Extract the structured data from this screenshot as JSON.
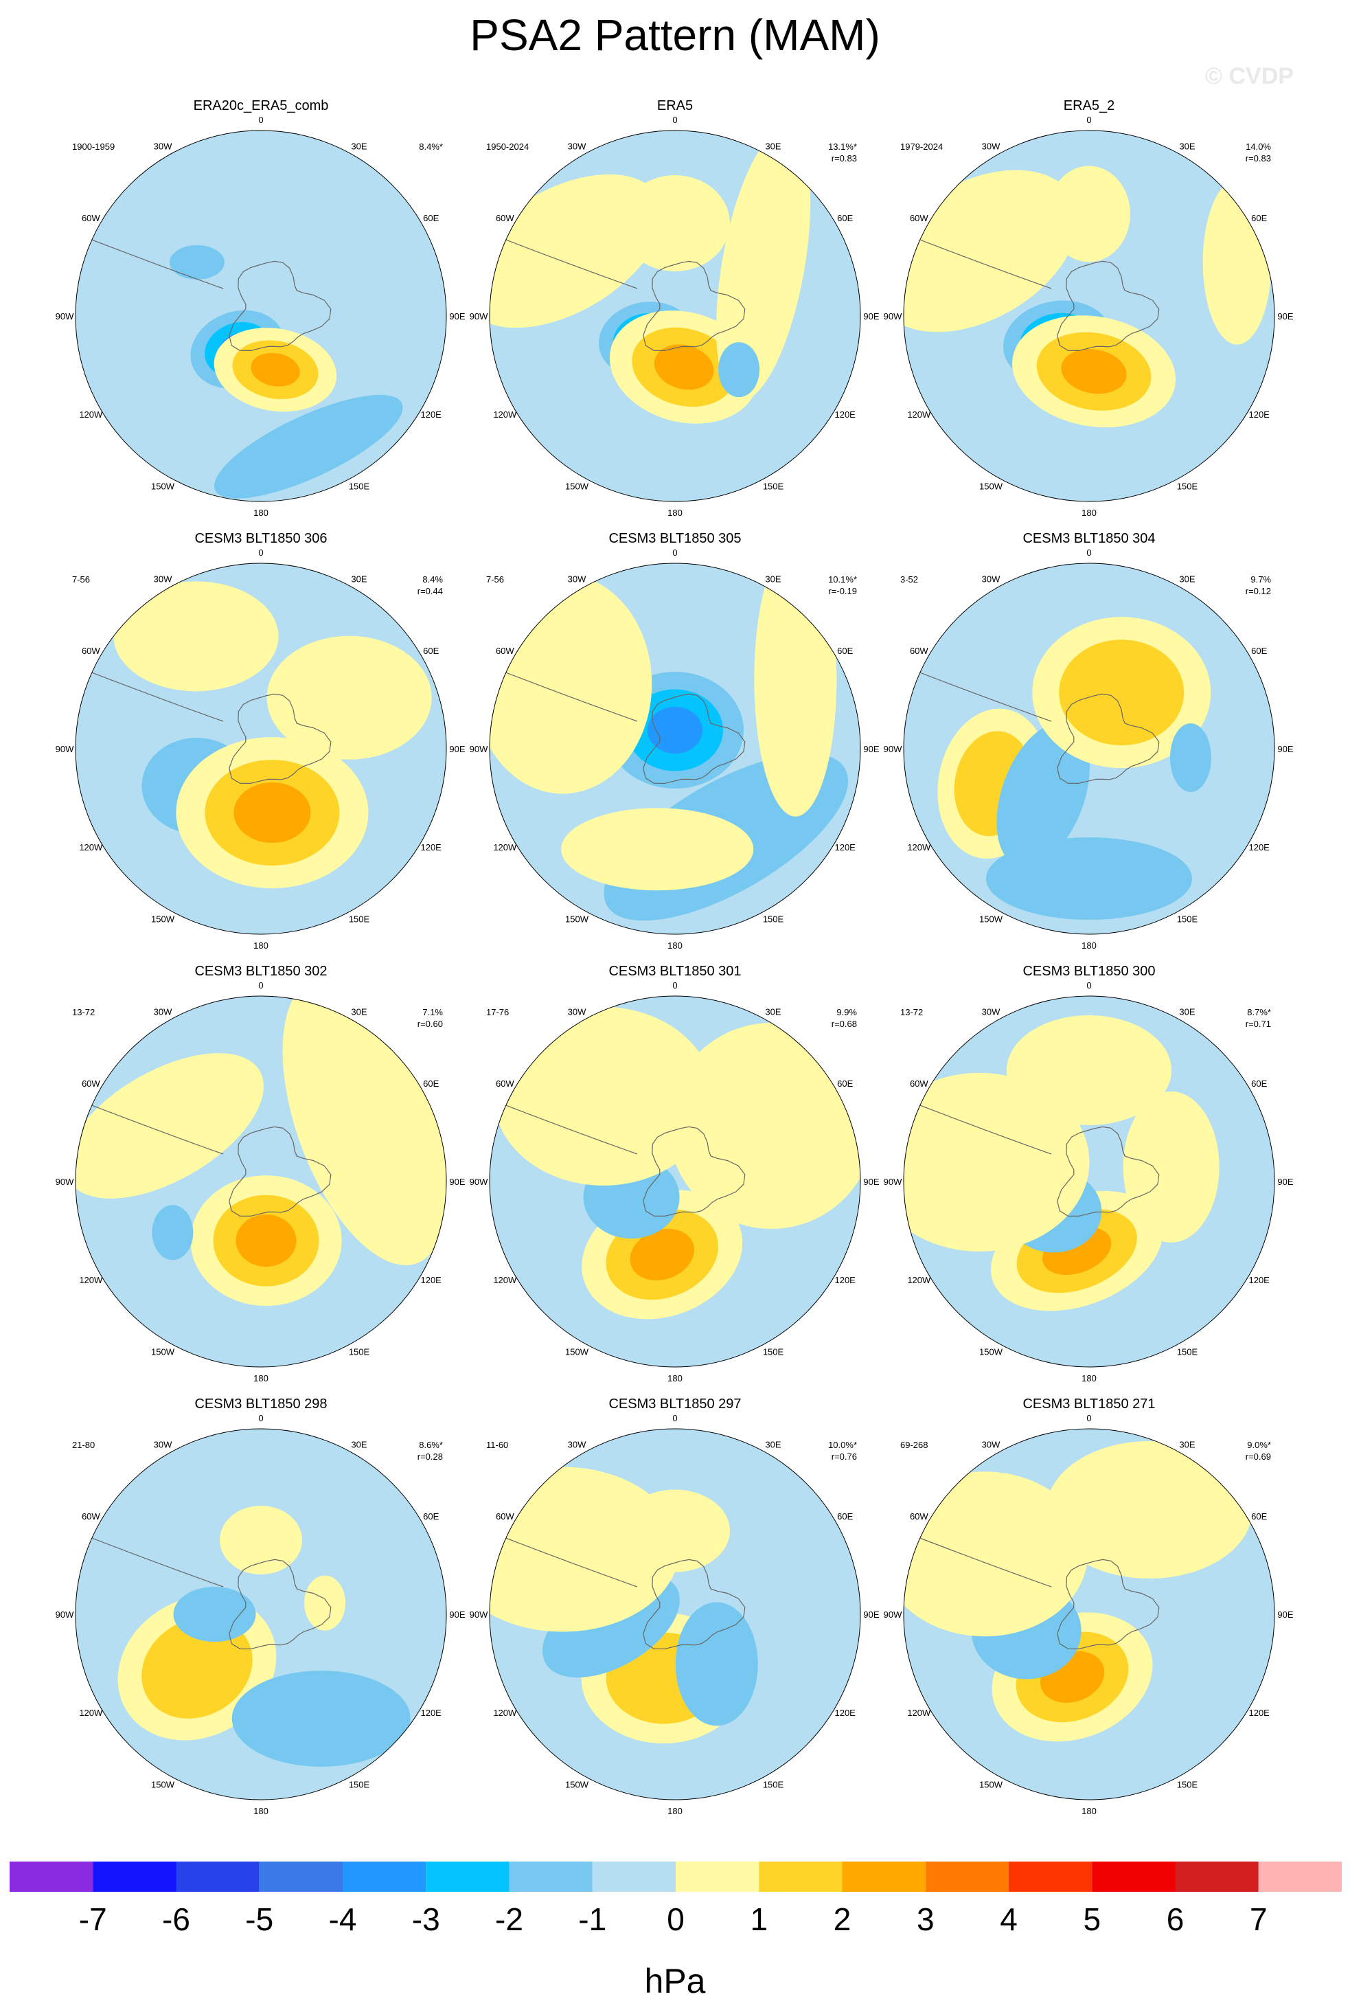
{
  "title": "PSA2 Pattern (MAM)",
  "watermark": "© CVDP",
  "units": "hPa",
  "colors": {
    "ocean_base": "#b5def2",
    "land_line": "#666666",
    "levels": [
      "#8a2be2",
      "#1414ff",
      "#2642e8",
      "#3a79e8",
      "#2297ff",
      "#05c3ff",
      "#76c8f0",
      "#b5def2",
      "#fffaa3",
      "#ffd429",
      "#ffa800",
      "#ff7a00",
      "#ff3500",
      "#f00000",
      "#d21e1e",
      "#ffb4b4"
    ]
  },
  "colorbar": {
    "tick_labels": [
      "-7",
      "-6",
      "-5",
      "-4",
      "-3",
      "-2",
      "-1",
      "0",
      "1",
      "2",
      "3",
      "4",
      "5",
      "6",
      "7"
    ]
  },
  "longitude_labels": [
    "0",
    "30E",
    "60E",
    "90E",
    "120E",
    "150E",
    "180",
    "150W",
    "120W",
    "90W",
    "60W",
    "30W"
  ],
  "chart_data": [
    {
      "type": "heatmap",
      "title": "ERA20c_ERA5_comb",
      "period": "1900-1959",
      "variance": "8.4%*",
      "corr": ""
    },
    {
      "type": "heatmap",
      "title": "ERA5",
      "period": "1950-2024",
      "variance": "13.1%*",
      "corr": "r=0.83"
    },
    {
      "type": "heatmap",
      "title": "ERA5_2",
      "period": "1979-2024",
      "variance": "14.0%",
      "corr": "r=0.83"
    },
    {
      "type": "heatmap",
      "title": "CESM3 BLT1850 306",
      "period": "7-56",
      "variance": "8.4%",
      "corr": "r=0.44"
    },
    {
      "type": "heatmap",
      "title": "CESM3 BLT1850 305",
      "period": "7-56",
      "variance": "10.1%*",
      "corr": "r=-0.19"
    },
    {
      "type": "heatmap",
      "title": "CESM3 BLT1850 304",
      "period": "3-52",
      "variance": "9.7%",
      "corr": "r=0.12"
    },
    {
      "type": "heatmap",
      "title": "CESM3 BLT1850 302",
      "period": "13-72",
      "variance": "7.1%",
      "corr": "r=0.60"
    },
    {
      "type": "heatmap",
      "title": "CESM3 BLT1850 301",
      "period": "17-76",
      "variance": "9.9%",
      "corr": "r=0.68"
    },
    {
      "type": "heatmap",
      "title": "CESM3 BLT1850 300",
      "period": "13-72",
      "variance": "8.7%*",
      "corr": "r=0.71"
    },
    {
      "type": "heatmap",
      "title": "CESM3 BLT1850 298",
      "period": "21-80",
      "variance": "8.6%*",
      "corr": "r=0.28"
    },
    {
      "type": "heatmap",
      "title": "CESM3 BLT1850 297",
      "period": "11-60",
      "variance": "10.0%*",
      "corr": "r=0.76"
    },
    {
      "type": "heatmap",
      "title": "CESM3 BLT1850 271",
      "period": "69-268",
      "variance": "9.0%*",
      "corr": "r=0.69"
    }
  ]
}
